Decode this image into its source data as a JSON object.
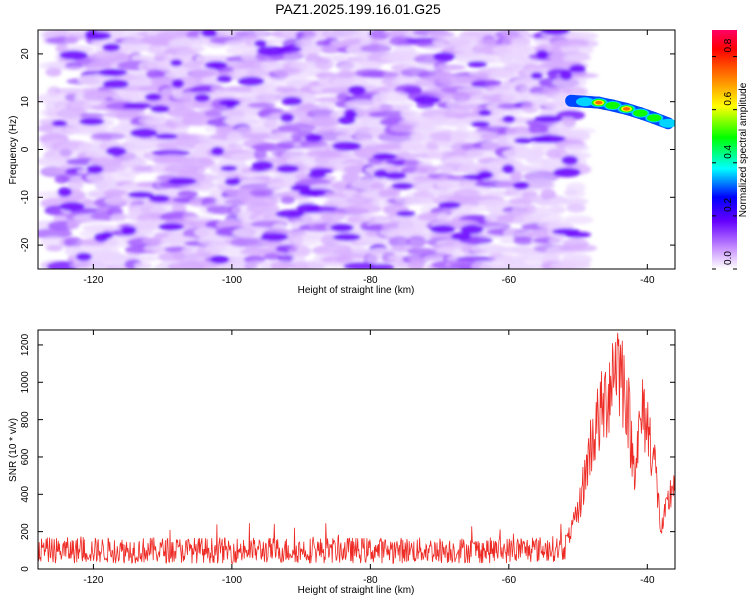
{
  "title": "PAZ1.2025.199.16.01.G25",
  "colorbar": {
    "label": "Normalized spectral amplitude",
    "ticks": [
      "0.0",
      "0.2",
      "0.4",
      "0.6",
      "0.8"
    ],
    "range": [
      0,
      0.9
    ],
    "colors": [
      "#ffffff",
      "#cc99ff",
      "#6600ff",
      "#0000ff",
      "#00ffff",
      "#00ff00",
      "#ffff00",
      "#ff8000",
      "#ff0000",
      "#ff0066"
    ]
  },
  "chart_data": [
    {
      "type": "heatmap",
      "xlabel": "Height of straight line (km)",
      "ylabel": "Frequency (Hz)",
      "xlim": [
        -128,
        -36
      ],
      "ylim": [
        -25,
        25
      ],
      "xticks": [
        -120,
        -100,
        -80,
        -60,
        -40
      ],
      "yticks": [
        20,
        10,
        0,
        -10,
        -20
      ],
      "noise_region": {
        "x": [
          -126,
          -50
        ],
        "y": [
          -25,
          25
        ],
        "amplitude_range": [
          0.0,
          0.15
        ]
      },
      "signal_track": {
        "x": [
          -51,
          -49,
          -47,
          -45,
          -43,
          -41,
          -39,
          -37
        ],
        "freq": [
          10.2,
          10.0,
          9.8,
          9.2,
          8.5,
          7.6,
          6.6,
          5.5
        ],
        "amplitude": [
          0.25,
          0.45,
          0.8,
          0.6,
          0.75,
          0.5,
          0.6,
          0.4
        ]
      }
    },
    {
      "type": "line",
      "xlabel": "Height of straight line (km)",
      "ylabel": "SNR (10 * v/v)",
      "xlim": [
        -128,
        -36
      ],
      "ylim": [
        0,
        1280
      ],
      "xticks": [
        -120,
        -100,
        -80,
        -60,
        -40
      ],
      "yticks": [
        0,
        200,
        400,
        600,
        800,
        1000,
        1200
      ],
      "series_color": "#ee2a24",
      "envelope": {
        "x": [
          -128,
          -60,
          -52,
          -50,
          -48,
          -46,
          -44.5,
          -43,
          -42,
          -40.5,
          -39,
          -38,
          -37,
          -36
        ],
        "y": [
          100,
          100,
          110,
          300,
          700,
          900,
          1150,
          950,
          550,
          850,
          600,
          200,
          350,
          500
        ]
      }
    }
  ]
}
